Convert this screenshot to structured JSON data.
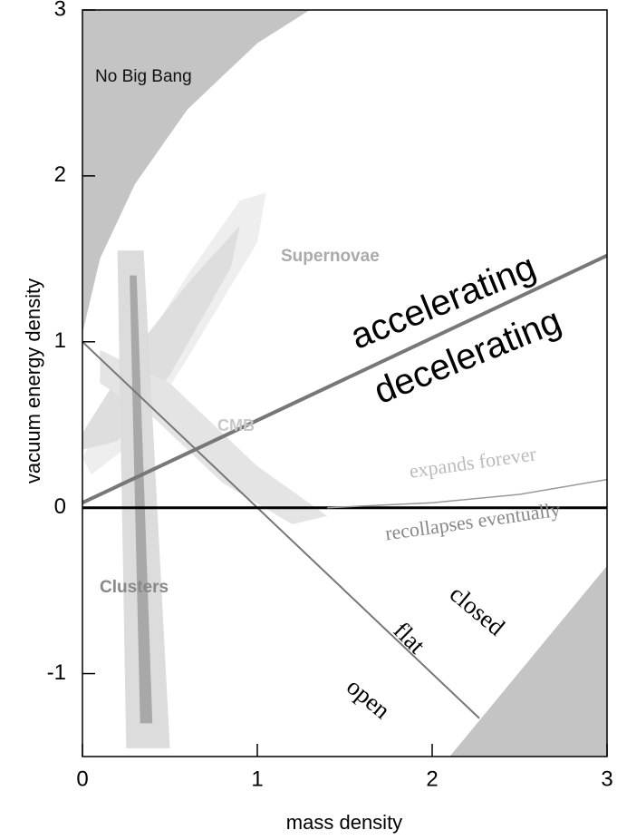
{
  "chart_data": {
    "type": "regions",
    "xlabel": "mass density",
    "ylabel": "vacuum energy density",
    "xlim": [
      0,
      3
    ],
    "ylim": [
      -1.5,
      3
    ],
    "xticks": [
      0,
      1,
      2,
      3
    ],
    "yticks": [
      -1,
      0,
      1,
      2,
      3
    ],
    "regions": [
      {
        "name": "No Big Bang",
        "color": "#c4c4c4",
        "x": [
          0,
          0,
          0.1,
          0.3,
          0.6,
          1.0,
          1.3
        ],
        "values": [
          3,
          1.05,
          1.5,
          1.95,
          2.4,
          2.8,
          3
        ]
      },
      {
        "color": "#c4c4c4",
        "x": [
          2.1,
          3,
          3
        ],
        "values": [
          -1.5,
          -0.35,
          -1.5
        ]
      },
      {
        "color": "#eeeeee",
        "x": [
          0,
          0.3,
          0.6,
          0.9,
          1.05,
          1.0,
          0.6,
          0.3,
          0.05
        ],
        "values": [
          0.3,
          0.9,
          1.4,
          1.85,
          1.9,
          1.6,
          0.9,
          0.4,
          0.2
        ]
      },
      {
        "color": "#dedede",
        "x": [
          0,
          0.3,
          0.6,
          0.9,
          0.85,
          0.5,
          0.2,
          0
        ],
        "values": [
          0.45,
          0.95,
          1.35,
          1.7,
          1.45,
          0.8,
          0.4,
          0.35
        ]
      },
      {
        "color": "#e4e4e4",
        "x": [
          0.1,
          0.5,
          1.0,
          1.4,
          1.2,
          0.8,
          0.4,
          0.1
        ],
        "values": [
          0.95,
          0.75,
          0.25,
          -0.05,
          -0.1,
          0.15,
          0.55,
          0.75
        ]
      },
      {
        "color": "#dcdcdc",
        "x": [
          0.2,
          0.35,
          0.5,
          0.25
        ],
        "values": [
          1.55,
          1.55,
          -1.45,
          -1.45
        ]
      },
      {
        "color": "#a8a8a8",
        "x": [
          0.27,
          0.31,
          0.4,
          0.33
        ],
        "values": [
          1.4,
          1.4,
          -1.3,
          -1.3
        ]
      }
    ],
    "lines": [
      {
        "color": "#777777",
        "width": 4,
        "x": [
          0,
          3
        ],
        "values": [
          0.03,
          1.52
        ]
      },
      {
        "color": "#777777",
        "width": 2,
        "x": [
          0,
          2.27
        ],
        "values": [
          1,
          -1.27
        ]
      },
      {
        "color": "#000000",
        "width": 3,
        "x": [
          0,
          3
        ],
        "values": [
          0,
          0
        ]
      },
      {
        "color": "#999999",
        "width": 1.5,
        "x": [
          1.4,
          2,
          2.5,
          3
        ],
        "values": [
          0,
          0.03,
          0.08,
          0.17
        ]
      }
    ],
    "annotations": [
      "No Big Bang",
      "Supernovae",
      "CMB",
      "Clusters",
      "accelerating",
      "decelerating",
      "expands forever",
      "recollapses eventually",
      "closed",
      "flat",
      "open"
    ]
  }
}
